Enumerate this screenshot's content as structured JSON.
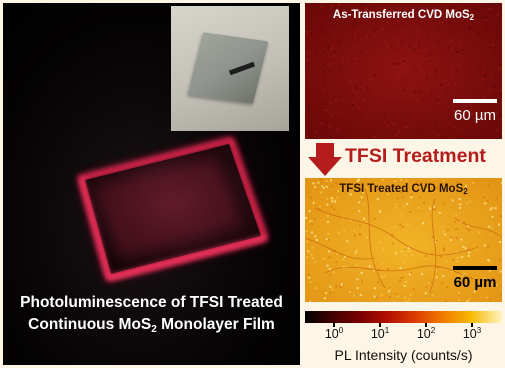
{
  "left_panel": {
    "caption_line1": "Photoluminescence of TFSI Treated",
    "caption_line2_before": "Continuous MoS",
    "caption_line2_sub": "2",
    "caption_line2_after": " Monolayer Film"
  },
  "top_map": {
    "title": "As-Transferred CVD MoS",
    "title_sub": "2",
    "scale_label": "60 µm"
  },
  "treatment": {
    "label": "TFSI Treatment"
  },
  "bottom_map": {
    "title": "TFSI Treated CVD MoS",
    "title_sub": "2",
    "scale_label": "60 µm"
  },
  "colorbar": {
    "ticks": [
      {
        "base": "10",
        "exp": "0"
      },
      {
        "base": "10",
        "exp": "1"
      },
      {
        "base": "10",
        "exp": "2"
      },
      {
        "base": "10",
        "exp": "3"
      }
    ],
    "label": "PL Intensity (counts/s)"
  },
  "colors": {
    "background": "#fdf5e6",
    "arrow": "#b51c1c",
    "glow": "#ff2a5a",
    "top_map": "#7a0b0b",
    "bottom_map": "#e8a21a"
  }
}
